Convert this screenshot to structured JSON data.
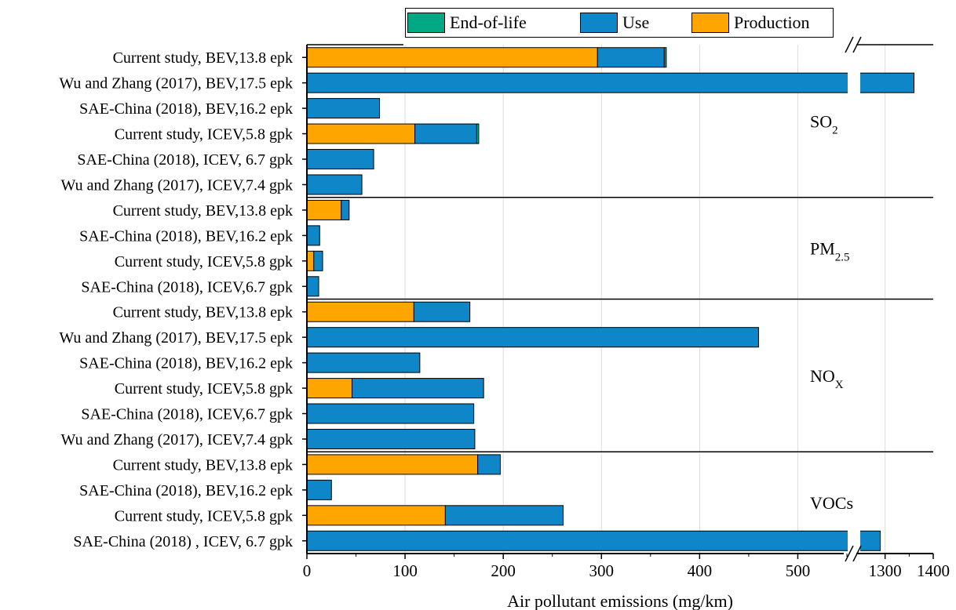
{
  "chart_data": {
    "type": "bar",
    "orientation": "horizontal",
    "stacked": true,
    "xlabel": "Air pollutant emissions (mg/km)",
    "x_ticks": [
      "0",
      "100",
      "200",
      "300",
      "400",
      "500",
      "1300",
      "1400"
    ],
    "axis_break": {
      "from": 560,
      "to": 1250
    },
    "xlim": [
      0,
      1400
    ],
    "grid": "vertical",
    "legend_position": "top",
    "series": [
      {
        "name": "End-of-life",
        "color": "#00A984"
      },
      {
        "name": "Use",
        "color": "#0E86C8"
      },
      {
        "name": "Production",
        "color": "#FFA500"
      }
    ],
    "groups": [
      {
        "pollutant": "SO",
        "subscript": "2",
        "bars": [
          {
            "label": "Current study, BEV,13.8 epk",
            "production": 296,
            "use": 68,
            "eol": 2
          },
          {
            "label": "Wu and Zhang (2017), BEV,17.5 epk",
            "production": 0,
            "use": 1360,
            "eol": 0
          },
          {
            "label": "SAE-China (2018), BEV,16.2 epk",
            "production": 0,
            "use": 74,
            "eol": 0
          },
          {
            "label": "Current study, ICEV,5.8 gpk",
            "production": 110,
            "use": 63,
            "eol": 2
          },
          {
            "label": "SAE-China (2018), ICEV, 6.7 gpk",
            "production": 0,
            "use": 68,
            "eol": 0
          },
          {
            "label": "Wu and Zhang (2017), ICEV,7.4 gpk",
            "production": 0,
            "use": 56,
            "eol": 0
          }
        ]
      },
      {
        "pollutant": "PM",
        "subscript": "2.5",
        "bars": [
          {
            "label": "Current study, BEV,13.8 epk",
            "production": 35,
            "use": 8,
            "eol": 0
          },
          {
            "label": "SAE-China (2018), BEV,16.2 epk",
            "production": 0,
            "use": 13,
            "eol": 0
          },
          {
            "label": "Current study, ICEV,5.8 gpk",
            "production": 7,
            "use": 9,
            "eol": 0
          },
          {
            "label": "SAE-China (2018), ICEV,6.7 gpk",
            "production": 0,
            "use": 12,
            "eol": 0
          }
        ]
      },
      {
        "pollutant": "NO",
        "subscript": "X",
        "bars": [
          {
            "label": "Current study, BEV,13.8 epk",
            "production": 109,
            "use": 57,
            "eol": 0
          },
          {
            "label": "Wu and Zhang (2017), BEV,17.5 epk",
            "production": 0,
            "use": 460,
            "eol": 0
          },
          {
            "label": "SAE-China (2018), BEV,16.2 epk",
            "production": 0,
            "use": 115,
            "eol": 0
          },
          {
            "label": "Current study, ICEV,5.8 gpk",
            "production": 46,
            "use": 134,
            "eol": 0
          },
          {
            "label": "SAE-China (2018), ICEV,6.7 gpk",
            "production": 0,
            "use": 170,
            "eol": 0
          },
          {
            "label": "Wu and Zhang (2017), ICEV,7.4 gpk",
            "production": 0,
            "use": 171,
            "eol": 0
          }
        ]
      },
      {
        "pollutant": "VOCs",
        "subscript": "",
        "bars": [
          {
            "label": "Current study, BEV,13.8 epk",
            "production": 174,
            "use": 23,
            "eol": 0
          },
          {
            "label": "SAE-China (2018), BEV,16.2 epk",
            "production": 0,
            "use": 25,
            "eol": 0
          },
          {
            "label": "Current study, ICEV,5.8 gpk",
            "production": 141,
            "use": 120,
            "eol": 0
          },
          {
            "label": "SAE-China (2018) , ICEV, 6.7 gpk",
            "production": 0,
            "use": 1290,
            "eol": 0
          }
        ]
      }
    ]
  }
}
